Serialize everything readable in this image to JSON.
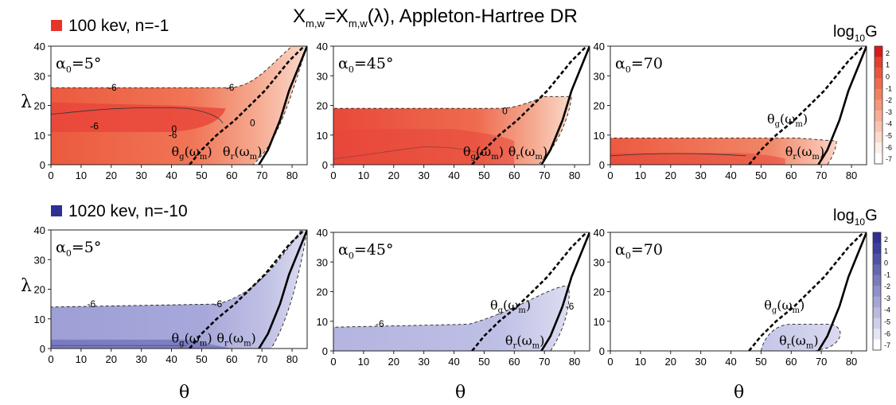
{
  "figure": {
    "title": "Xₘ,ᵥ=Xₘ,ᵥ(λ), Appleton-Hartree DR",
    "title_text_main": "X",
    "title_sub": "m,w",
    "title_mid": "=X",
    "title_end": "(λ), Appleton-Hartree DR",
    "colorbar_label": "log",
    "colorbar_sub": "10",
    "colorbar_hat": "G"
  },
  "rows": [
    {
      "legend": "100 kev, n=-1",
      "color": "#e8332a"
    },
    {
      "legend": "1020 kev, n=-10",
      "color": "#2e3192"
    }
  ],
  "axes": {
    "ylabel": "λ",
    "xlabel": "θ",
    "xticks": [
      "0",
      "10",
      "20",
      "30",
      "40",
      "50",
      "60",
      "70",
      "80"
    ],
    "yticks": [
      "0",
      "10",
      "20",
      "30",
      "40"
    ],
    "xlim": [
      0,
      85
    ],
    "ylim": [
      0,
      40
    ]
  },
  "colorbar_ticks": [
    "2",
    "1",
    "0",
    "-1",
    "-2",
    "-3",
    "-4",
    "-5",
    "-6",
    "-7"
  ],
  "panels": [
    {
      "alpha": "5°",
      "labels": [
        "θg(ωm)",
        "θr(ωm)"
      ]
    },
    {
      "alpha": "45°",
      "labels": [
        "θg(ωm)",
        "θr(ωm)"
      ]
    },
    {
      "alpha": "70",
      "labels": [
        "θg(ωm)",
        "θr(ωm)"
      ]
    },
    {
      "alpha": "5°",
      "labels": [
        "θg(ωm)",
        "θr(ωm)"
      ]
    },
    {
      "alpha": "45°",
      "labels": [
        "θg(ωm)",
        "θr(ωm)"
      ]
    },
    {
      "alpha": "70",
      "labels": [
        "θg(ωm)",
        "θr(ωm)"
      ]
    }
  ],
  "chart_data": [
    {
      "type": "heatmap",
      "title": "",
      "xlabel": "",
      "ylabel": "λ",
      "xlim": [
        0,
        85
      ],
      "ylim": [
        0,
        40
      ],
      "alpha0": "5°",
      "energy": "100 kev, n=-1",
      "colormap": "red",
      "zlabel": "log10 G",
      "region": {
        "theta_max_at_lambda0": 67,
        "lambda_top": 26,
        "theta_edge": 60,
        "lambda_max": 40
      },
      "contour_labels": [
        "-6",
        "-6",
        "0",
        "0",
        "-6",
        "-6"
      ],
      "curves": [
        {
          "name": "θg(ωm)",
          "style": "dashed",
          "points": [
            [
              46,
              0
            ],
            [
              50,
              5
            ],
            [
              55,
              10
            ],
            [
              61,
              15
            ],
            [
              66,
              20
            ],
            [
              71,
              25
            ],
            [
              75,
              30
            ],
            [
              79,
              35
            ],
            [
              84,
              40
            ]
          ]
        },
        {
          "name": "θr(ωm)",
          "style": "solid",
          "points": [
            [
              69,
              0
            ],
            [
              72,
              5
            ],
            [
              74,
              10
            ],
            [
              76,
              15
            ],
            [
              77.5,
              20
            ],
            [
              79,
              25
            ],
            [
              81,
              30
            ],
            [
              83,
              35
            ],
            [
              85,
              40
            ]
          ]
        }
      ]
    },
    {
      "type": "heatmap",
      "title": "",
      "xlabel": "",
      "ylabel": "",
      "xlim": [
        0,
        85
      ],
      "ylim": [
        0,
        40
      ],
      "alpha0": "45°",
      "energy": "100 kev, n=-1",
      "colormap": "red",
      "zlabel": "log10 G",
      "region": {
        "theta_max_at_lambda0": 68,
        "lambda_top": 19,
        "theta_edge": 79
      },
      "contour_labels": [
        "0"
      ],
      "curves": [
        {
          "name": "θg(ωm)",
          "style": "dashed",
          "points": [
            [
              46,
              0
            ],
            [
              50,
              5
            ],
            [
              55,
              10
            ],
            [
              61,
              15
            ],
            [
              66,
              20
            ],
            [
              71,
              25
            ],
            [
              75,
              30
            ],
            [
              79,
              35
            ],
            [
              84,
              40
            ]
          ]
        },
        {
          "name": "θr(ωm)",
          "style": "solid",
          "points": [
            [
              69,
              0
            ],
            [
              72,
              5
            ],
            [
              74,
              10
            ],
            [
              76,
              15
            ],
            [
              77.5,
              20
            ],
            [
              79,
              25
            ],
            [
              81,
              30
            ],
            [
              83,
              35
            ],
            [
              85,
              40
            ]
          ]
        }
      ]
    },
    {
      "type": "heatmap",
      "title": "",
      "xlabel": "",
      "ylabel": "",
      "xlim": [
        0,
        85
      ],
      "ylim": [
        0,
        40
      ],
      "alpha0": "70",
      "energy": "100 kev, n=-1",
      "colormap": "red",
      "zlabel": "log10 G",
      "region": {
        "theta_max_at_lambda0": 74,
        "lambda_top": 9,
        "theta_edge": 75
      },
      "curves": [
        {
          "name": "θg(ωm)",
          "style": "dashed",
          "points": [
            [
              46,
              0
            ],
            [
              50,
              5
            ],
            [
              55,
              10
            ],
            [
              61,
              15
            ],
            [
              66,
              20
            ],
            [
              71,
              25
            ],
            [
              75,
              30
            ],
            [
              79,
              35
            ],
            [
              84,
              40
            ]
          ]
        },
        {
          "name": "θr(ωm)",
          "style": "solid",
          "points": [
            [
              69,
              0
            ],
            [
              72,
              5
            ],
            [
              74,
              10
            ],
            [
              76,
              15
            ],
            [
              77.5,
              20
            ],
            [
              79,
              25
            ],
            [
              81,
              30
            ],
            [
              83,
              35
            ],
            [
              85,
              40
            ]
          ]
        }
      ]
    },
    {
      "type": "heatmap",
      "title": "",
      "xlabel": "θ",
      "ylabel": "λ",
      "xlim": [
        0,
        85
      ],
      "ylim": [
        0,
        40
      ],
      "alpha0": "5°",
      "energy": "1020 kev, n=-10",
      "colormap": "blue",
      "zlabel": "log10 G",
      "region": {
        "theta_max_at_lambda0": 73,
        "lambda_top": 14,
        "theta_edge": 55,
        "lambda_max": 40
      },
      "contour_labels": [
        "-6",
        "-6"
      ],
      "curves": [
        {
          "name": "θg(ωm)",
          "style": "dashed",
          "points": [
            [
              46,
              0
            ],
            [
              50,
              5
            ],
            [
              55,
              10
            ],
            [
              61,
              15
            ],
            [
              66,
              20
            ],
            [
              71,
              25
            ],
            [
              75,
              30
            ],
            [
              79,
              35
            ],
            [
              84,
              40
            ]
          ]
        },
        {
          "name": "θr(ωm)",
          "style": "solid",
          "points": [
            [
              69,
              0
            ],
            [
              72,
              5
            ],
            [
              74,
              10
            ],
            [
              76,
              15
            ],
            [
              77.5,
              20
            ],
            [
              79,
              25
            ],
            [
              81,
              30
            ],
            [
              83,
              35
            ],
            [
              85,
              40
            ]
          ]
        }
      ]
    },
    {
      "type": "heatmap",
      "title": "",
      "xlabel": "θ",
      "ylabel": "",
      "xlim": [
        0,
        85
      ],
      "ylim": [
        0,
        40
      ],
      "alpha0": "45°",
      "energy": "1020 kev, n=-10",
      "colormap": "blue",
      "zlabel": "log10 G",
      "region": {
        "theta_max_at_lambda0": 72,
        "lambda_top": 8,
        "theta_edge": 78,
        "lambda_max": 22
      },
      "contour_labels": [
        "-6",
        "-6"
      ],
      "curves": [
        {
          "name": "θg(ωm)",
          "style": "dashed",
          "points": [
            [
              46,
              0
            ],
            [
              50,
              5
            ],
            [
              55,
              10
            ],
            [
              61,
              15
            ],
            [
              66,
              20
            ],
            [
              71,
              25
            ],
            [
              75,
              30
            ],
            [
              79,
              35
            ],
            [
              84,
              40
            ]
          ]
        },
        {
          "name": "θr(ωm)",
          "style": "solid",
          "points": [
            [
              69,
              0
            ],
            [
              72,
              5
            ],
            [
              74,
              10
            ],
            [
              76,
              15
            ],
            [
              77.5,
              20
            ],
            [
              79,
              25
            ],
            [
              81,
              30
            ],
            [
              83,
              35
            ],
            [
              85,
              40
            ]
          ]
        }
      ]
    },
    {
      "type": "heatmap",
      "title": "",
      "xlabel": "θ",
      "ylabel": "",
      "xlim": [
        0,
        85
      ],
      "ylim": [
        0,
        40
      ],
      "alpha0": "70",
      "energy": "1020 kev, n=-10",
      "colormap": "blue",
      "zlabel": "log10 G",
      "region": {
        "theta_min": 50,
        "theta_max": 76,
        "lambda_top": 9
      },
      "curves": [
        {
          "name": "θg(ωm)",
          "style": "dashed",
          "points": [
            [
              46,
              0
            ],
            [
              50,
              5
            ],
            [
              55,
              10
            ],
            [
              61,
              15
            ],
            [
              66,
              20
            ],
            [
              71,
              25
            ],
            [
              75,
              30
            ],
            [
              79,
              35
            ],
            [
              84,
              40
            ]
          ]
        },
        {
          "name": "θr(ωm)",
          "style": "solid",
          "points": [
            [
              69,
              0
            ],
            [
              72,
              5
            ],
            [
              74,
              10
            ],
            [
              76,
              15
            ],
            [
              77.5,
              20
            ],
            [
              79,
              25
            ],
            [
              81,
              30
            ],
            [
              83,
              35
            ],
            [
              85,
              40
            ]
          ]
        }
      ]
    }
  ]
}
